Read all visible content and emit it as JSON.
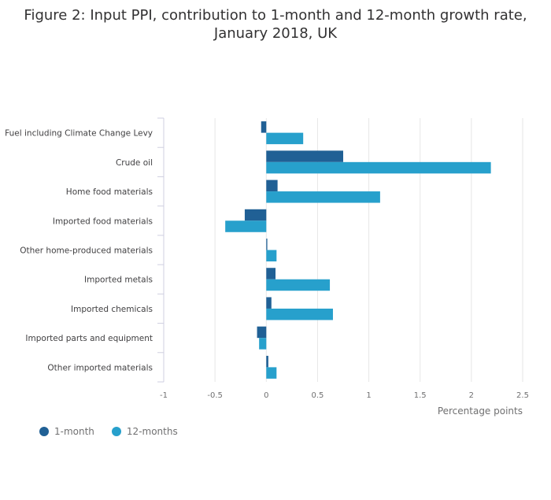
{
  "chart_data": {
    "type": "bar",
    "orientation": "horizontal",
    "title_lines": [
      "Figure 2: Input PPI, contribution to 1-month and 12-month growth rate,",
      "January 2018, UK"
    ],
    "categories": [
      "Fuel including Climate Change Levy",
      "Crude oil",
      "Home food materials",
      "Imported food materials",
      "Other home-produced materials",
      "Imported metals",
      "Imported chemicals",
      "Imported parts and equipment",
      "Other imported materials"
    ],
    "series": [
      {
        "name": "1-month",
        "color": "#206095",
        "values": [
          -0.05,
          0.75,
          0.11,
          -0.21,
          0.01,
          0.09,
          0.05,
          -0.09,
          0.02
        ]
      },
      {
        "name": "12-months",
        "color": "#27a0cc",
        "values": [
          0.36,
          2.19,
          1.11,
          -0.4,
          0.1,
          0.62,
          0.65,
          -0.07,
          0.1
        ]
      }
    ],
    "xlabel": "Percentage points",
    "xlim": [
      -1,
      2.5
    ],
    "xticks": [
      -1,
      -0.5,
      0,
      0.5,
      1,
      1.5,
      2,
      2.5
    ],
    "xtick_labels": [
      "-1",
      "-0.5",
      "0",
      "0.5",
      "1",
      "1.5",
      "2",
      "2.5"
    ],
    "grid": true,
    "legend_position": "bottom-left"
  },
  "colors": {
    "gridline": "#e6e6e6",
    "axis": "#cfcfe0",
    "tick_text": "#707071",
    "category_text": "#414042"
  }
}
